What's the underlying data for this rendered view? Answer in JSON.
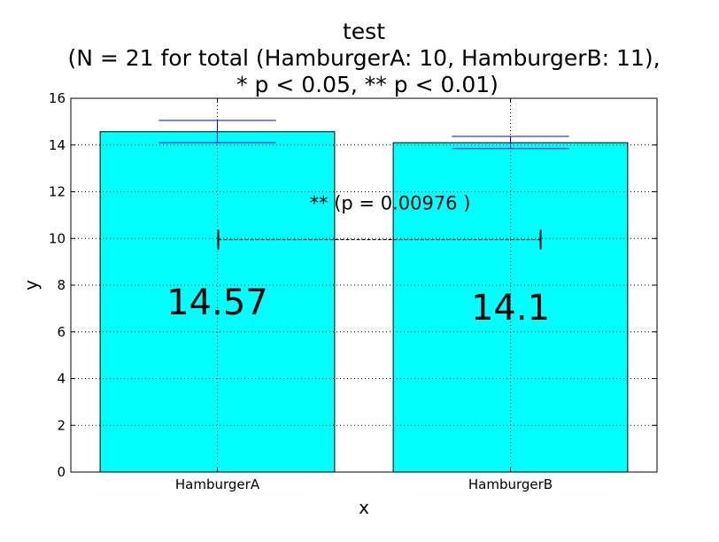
{
  "chart_data": {
    "type": "bar",
    "title_lines": [
      "test",
      "(N = 21 for total (HamburgerA: 10, HamburgerB: 11),",
      "* p < 0.05, ** p < 0.01)"
    ],
    "xlabel": "x",
    "ylabel": "y",
    "categories": [
      "HamburgerA",
      "HamburgerB"
    ],
    "values": [
      14.57,
      14.1
    ],
    "value_labels": [
      "14.57",
      "14.1"
    ],
    "error_bars": [
      {
        "low": 14.1,
        "high": 15.05
      },
      {
        "low": 13.85,
        "high": 14.37
      }
    ],
    "ylim": [
      0,
      16
    ],
    "yticks": [
      0,
      2,
      4,
      6,
      8,
      10,
      12,
      14,
      16
    ],
    "grid": true,
    "significance": {
      "from": "HamburgerA",
      "to": "HamburgerB",
      "y": 9.95,
      "label": "** (p = 0.00976 )"
    },
    "colors": {
      "bar_fill": "#00ffff",
      "bar_edge": "#000000",
      "error_bar": "#0000ff",
      "grid": "#000000",
      "significance_line": "#000000"
    }
  }
}
